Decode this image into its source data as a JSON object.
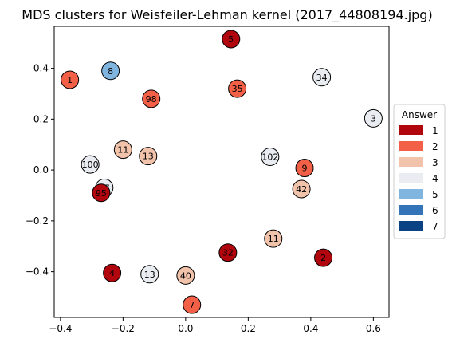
{
  "chart_data": {
    "type": "scatter",
    "title": "MDS clusters for Weisfeiler-Lehman kernel (2017_44808194.jpg)",
    "xlabel": "",
    "ylabel": "",
    "xlim": [
      -0.42,
      0.65
    ],
    "ylim": [
      -0.58,
      0.565
    ],
    "xticks": [
      -0.4,
      -0.2,
      0.0,
      0.2,
      0.4,
      0.6
    ],
    "xtick_labels": [
      "−0.4",
      "−0.2",
      "0.0",
      "0.2",
      "0.4",
      "0.6"
    ],
    "yticks": [
      -0.4,
      -0.2,
      0.0,
      0.2,
      0.4
    ],
    "ytick_labels": [
      "−0.4",
      "−0.2",
      "0.0",
      "0.2",
      "0.4"
    ],
    "grid": false,
    "legend": {
      "title": "Answer",
      "placement": "center-right-outside",
      "entries": [
        {
          "label": "1",
          "color": "#b2060f"
        },
        {
          "label": "2",
          "color": "#f26147"
        },
        {
          "label": "3",
          "color": "#f2c3ab"
        },
        {
          "label": "4",
          "color": "#e9ecf0"
        },
        {
          "label": "5",
          "color": "#80b5e0"
        },
        {
          "label": "6",
          "color": "#3474b8"
        },
        {
          "label": "7",
          "color": "#0a4283"
        }
      ]
    },
    "points": [
      {
        "label": "5",
        "x": 0.145,
        "y": 0.515,
        "answer": 1
      },
      {
        "label": "1",
        "x": -0.37,
        "y": 0.355,
        "answer": 2
      },
      {
        "label": "8",
        "x": -0.24,
        "y": 0.39,
        "answer": 5
      },
      {
        "label": "98",
        "x": -0.11,
        "y": 0.28,
        "answer": 2
      },
      {
        "label": "35",
        "x": 0.165,
        "y": 0.32,
        "answer": 2
      },
      {
        "label": "34",
        "x": 0.435,
        "y": 0.365,
        "answer": 4
      },
      {
        "label": "3",
        "x": 0.6,
        "y": 0.203,
        "answer": 4
      },
      {
        "label": "11",
        "x": -0.2,
        "y": 0.08,
        "answer": 3
      },
      {
        "label": "13",
        "x": -0.12,
        "y": 0.055,
        "answer": 3
      },
      {
        "label": "100",
        "x": -0.305,
        "y": 0.022,
        "answer": 4
      },
      {
        "label": "97",
        "x": -0.26,
        "y": -0.07,
        "answer": 4
      },
      {
        "label": "95",
        "x": -0.27,
        "y": -0.09,
        "answer": 1
      },
      {
        "label": "102",
        "x": 0.27,
        "y": 0.052,
        "answer": 4
      },
      {
        "label": "9",
        "x": 0.38,
        "y": 0.008,
        "answer": 2
      },
      {
        "label": "42",
        "x": 0.37,
        "y": -0.075,
        "answer": 3
      },
      {
        "label": "11",
        "x": 0.28,
        "y": -0.27,
        "answer": 3
      },
      {
        "label": "32",
        "x": 0.135,
        "y": -0.325,
        "answer": 1
      },
      {
        "label": "2",
        "x": 0.44,
        "y": -0.345,
        "answer": 1
      },
      {
        "label": "4",
        "x": -0.235,
        "y": -0.405,
        "answer": 1
      },
      {
        "label": "13",
        "x": -0.115,
        "y": -0.41,
        "answer": 4
      },
      {
        "label": "40",
        "x": 0.0,
        "y": -0.415,
        "answer": 3
      },
      {
        "label": "7",
        "x": 0.02,
        "y": -0.53,
        "answer": 2
      }
    ]
  }
}
